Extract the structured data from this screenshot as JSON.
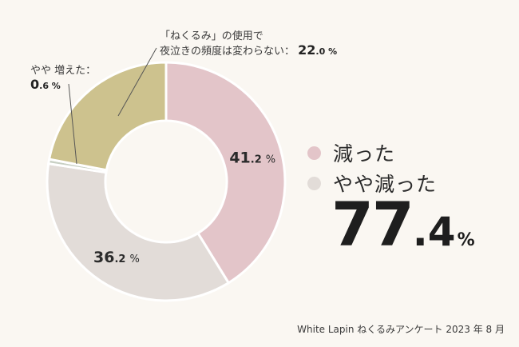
{
  "colors": {
    "background": "#faf7f2",
    "decreased": "#e3c5c9",
    "slightly_decreased": "#e2dcd8",
    "slightly_increased": "#c8d0c4",
    "unchanged": "#cdc28e",
    "leader": "#555555",
    "separator": "#ffffff"
  },
  "chart_data": {
    "type": "pie",
    "donut": true,
    "slices": [
      {
        "label": "減った",
        "value": 41.2,
        "color": "#e3c5c9",
        "label_int": "41",
        "label_dec": ".2",
        "label_unit": "%"
      },
      {
        "label": "やや減った",
        "value": 36.2,
        "color": "#e2dcd8",
        "label_int": "36",
        "label_dec": ".2",
        "label_unit": "%"
      },
      {
        "label": "やや 増えた",
        "value": 0.6,
        "color": "#c8d0c4"
      },
      {
        "label": "「ねくるみ」の使用で夜泣きの頻度は変わらない",
        "value": 22.0,
        "color": "#cdc28e"
      }
    ],
    "legend": [
      "減った",
      "やや減った"
    ],
    "combined_total": "77.4%"
  },
  "callouts": {
    "unchanged": {
      "line1": "「ねくるみ」の使用で",
      "line2": "夜泣きの頻度は変わらない：",
      "int": "22",
      "dec": ".0 %"
    },
    "increased": {
      "line1": "やや 増えた：",
      "int": "0",
      "dec": ".6 %"
    }
  },
  "legend": {
    "item1": "減った",
    "item2": "やや減った"
  },
  "total": {
    "int": "77",
    "dec": ".4",
    "unit": "%"
  },
  "source": "White Lapin ねくるみアンケート 2023 年 8 月"
}
